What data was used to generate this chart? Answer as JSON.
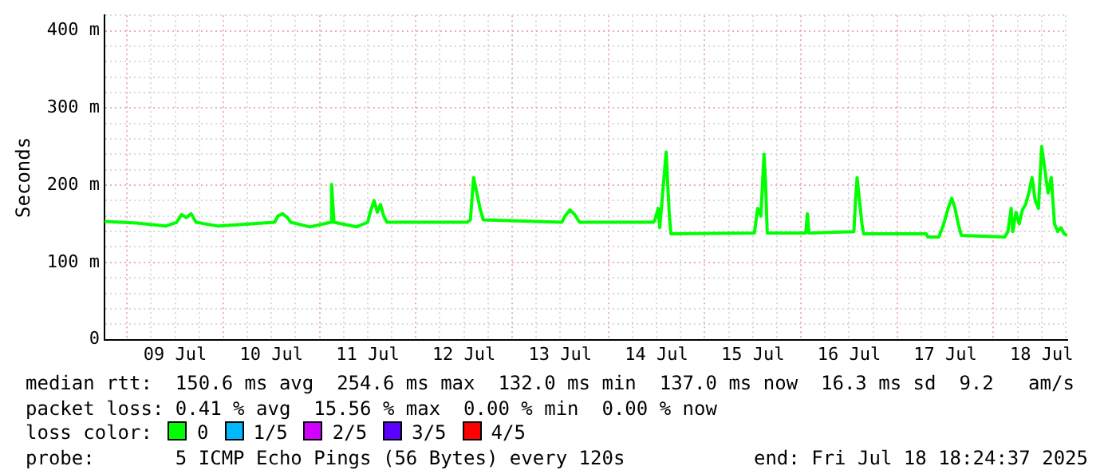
{
  "chart_data": {
    "type": "line",
    "ylabel": "Seconds",
    "x": [
      "2025-07-08T18:24",
      "2025-07-09T02:24",
      "2025-07-09T09:36",
      "2025-07-09T12:24",
      "2025-07-09T13:36",
      "2025-07-09T14:48",
      "2025-07-09T16:00",
      "2025-07-09T17:12",
      "2025-07-09T22:48",
      "2025-07-10T12:48",
      "2025-07-10T13:36",
      "2025-07-10T14:48",
      "2025-07-10T16:00",
      "2025-07-10T16:48",
      "2025-07-10T21:36",
      "2025-07-11T02:48",
      "2025-07-11T03:00",
      "2025-07-11T03:36",
      "2025-07-11T09:12",
      "2025-07-11T12:00",
      "2025-07-11T12:48",
      "2025-07-11T13:36",
      "2025-07-11T14:24",
      "2025-07-11T15:12",
      "2025-07-11T16:00",
      "2025-07-11T16:48",
      "2025-07-12T12:48",
      "2025-07-12T13:36",
      "2025-07-12T14:24",
      "2025-07-12T15:12",
      "2025-07-12T16:00",
      "2025-07-12T16:48",
      "2025-07-13T12:24",
      "2025-07-13T13:12",
      "2025-07-13T14:24",
      "2025-07-13T15:36",
      "2025-07-13T16:48",
      "2025-07-14T11:12",
      "2025-07-14T11:36",
      "2025-07-14T12:24",
      "2025-07-14T12:48",
      "2025-07-14T14:24",
      "2025-07-14T15:12",
      "2025-07-14T15:36",
      "2025-07-15T12:24",
      "2025-07-15T13:12",
      "2025-07-15T14:00",
      "2025-07-15T14:48",
      "2025-07-15T15:12",
      "2025-07-15T15:36",
      "2025-07-16T01:12",
      "2025-07-16T01:36",
      "2025-07-16T02:00",
      "2025-07-16T13:12",
      "2025-07-16T13:36",
      "2025-07-16T14:00",
      "2025-07-16T14:24",
      "2025-07-16T15:12",
      "2025-07-16T15:36",
      "2025-07-17T07:12",
      "2025-07-17T07:36",
      "2025-07-17T10:24",
      "2025-07-17T11:36",
      "2025-07-17T12:48",
      "2025-07-17T13:36",
      "2025-07-17T14:24",
      "2025-07-17T15:12",
      "2025-07-17T16:00",
      "2025-07-18T02:48",
      "2025-07-18T03:36",
      "2025-07-18T04:24",
      "2025-07-18T04:48",
      "2025-07-18T05:36",
      "2025-07-18T06:24",
      "2025-07-18T07:12",
      "2025-07-18T08:00",
      "2025-07-18T08:48",
      "2025-07-18T09:36",
      "2025-07-18T10:24",
      "2025-07-18T11:12",
      "2025-07-18T12:00",
      "2025-07-18T12:48",
      "2025-07-18T13:36",
      "2025-07-18T14:24",
      "2025-07-18T15:12",
      "2025-07-18T16:00",
      "2025-07-18T16:48",
      "2025-07-18T17:36",
      "2025-07-18T18:24"
    ],
    "series": [
      {
        "color": "#00ff00",
        "values": [
          153,
          151,
          147,
          152,
          162,
          158,
          163,
          152,
          147,
          152,
          160,
          163,
          158,
          152,
          146,
          152,
          201,
          152,
          146,
          152,
          168,
          180,
          165,
          175,
          160,
          152,
          152,
          155,
          210,
          190,
          170,
          155,
          152,
          160,
          168,
          162,
          152,
          152,
          155,
          170,
          145,
          243,
          160,
          137,
          138,
          170,
          160,
          240,
          200,
          138,
          138,
          163,
          138,
          140,
          180,
          210,
          190,
          150,
          137,
          137,
          133,
          133,
          150,
          172,
          183,
          170,
          150,
          135,
          133,
          140,
          170,
          140,
          165,
          150,
          168,
          175,
          190,
          210,
          180,
          170,
          250,
          220,
          190,
          210,
          150,
          140,
          145,
          137,
          135
        ]
      }
    ],
    "xlim": [
      "2025-07-08T18:24",
      "2025-07-18T18:24"
    ],
    "xticks": [
      {
        "value": "2025-07-09T00:00",
        "label": null
      },
      {
        "value": "2025-07-09T06:00",
        "label": null
      },
      {
        "value": "2025-07-09T12:00",
        "label": "09 Jul"
      },
      {
        "value": "2025-07-09T18:00",
        "label": null
      },
      {
        "value": "2025-07-10T00:00",
        "label": null
      },
      {
        "value": "2025-07-10T06:00",
        "label": null
      },
      {
        "value": "2025-07-10T12:00",
        "label": "10 Jul"
      },
      {
        "value": "2025-07-10T18:00",
        "label": null
      },
      {
        "value": "2025-07-11T00:00",
        "label": null
      },
      {
        "value": "2025-07-11T06:00",
        "label": null
      },
      {
        "value": "2025-07-11T12:00",
        "label": "11 Jul"
      },
      {
        "value": "2025-07-11T18:00",
        "label": null
      },
      {
        "value": "2025-07-12T00:00",
        "label": null
      },
      {
        "value": "2025-07-12T06:00",
        "label": null
      },
      {
        "value": "2025-07-12T12:00",
        "label": "12 Jul"
      },
      {
        "value": "2025-07-12T18:00",
        "label": null
      },
      {
        "value": "2025-07-13T00:00",
        "label": null
      },
      {
        "value": "2025-07-13T06:00",
        "label": null
      },
      {
        "value": "2025-07-13T12:00",
        "label": "13 Jul"
      },
      {
        "value": "2025-07-13T18:00",
        "label": null
      },
      {
        "value": "2025-07-14T00:00",
        "label": null
      },
      {
        "value": "2025-07-14T06:00",
        "label": null
      },
      {
        "value": "2025-07-14T12:00",
        "label": "14 Jul"
      },
      {
        "value": "2025-07-14T18:00",
        "label": null
      },
      {
        "value": "2025-07-15T00:00",
        "label": null
      },
      {
        "value": "2025-07-15T06:00",
        "label": null
      },
      {
        "value": "2025-07-15T12:00",
        "label": "15 Jul"
      },
      {
        "value": "2025-07-15T18:00",
        "label": null
      },
      {
        "value": "2025-07-16T00:00",
        "label": null
      },
      {
        "value": "2025-07-16T06:00",
        "label": null
      },
      {
        "value": "2025-07-16T12:00",
        "label": "16 Jul"
      },
      {
        "value": "2025-07-16T18:00",
        "label": null
      },
      {
        "value": "2025-07-17T00:00",
        "label": null
      },
      {
        "value": "2025-07-17T06:00",
        "label": null
      },
      {
        "value": "2025-07-17T12:00",
        "label": "17 Jul"
      },
      {
        "value": "2025-07-17T18:00",
        "label": null
      },
      {
        "value": "2025-07-18T00:00",
        "label": null
      },
      {
        "value": "2025-07-18T06:00",
        "label": null
      },
      {
        "value": "2025-07-18T12:00",
        "label": "18 Jul"
      },
      {
        "value": "2025-07-18T18:00",
        "label": null
      }
    ],
    "ylim": [
      0,
      420
    ],
    "yticks": [
      0,
      {
        "value": 20,
        "label": null
      },
      {
        "value": 40,
        "label": null
      },
      {
        "value": 60,
        "label": null
      },
      {
        "value": 80,
        "label": null
      },
      {
        "value": 100,
        "label": "100 m"
      },
      {
        "value": 120,
        "label": null
      },
      {
        "value": 140,
        "label": null
      },
      {
        "value": 160,
        "label": null
      },
      {
        "value": 180,
        "label": null
      },
      {
        "value": 200,
        "label": "200 m"
      },
      {
        "value": 220,
        "label": null
      },
      {
        "value": 240,
        "label": null
      },
      {
        "value": 260,
        "label": null
      },
      {
        "value": 280,
        "label": null
      },
      {
        "value": 300,
        "label": "300 m"
      },
      {
        "value": 320,
        "label": null
      },
      {
        "value": 340,
        "label": null
      },
      {
        "value": 360,
        "label": null
      },
      {
        "value": 380,
        "label": null
      },
      {
        "value": 400,
        "label": "400 m"
      },
      {
        "value": 420,
        "label": null
      }
    ],
    "grid": true,
    "marker": "none",
    "line_style": "solid",
    "annotations": [
      "median rtt:  150.6 ms avg  254.6 ms max  132.0 ms min  137.0 ms now  16.3 ms sd  9.2   am/s",
      "packet loss: 0.41 % avg  15.56 % max  0.00 % min  0.00 % now",
      "loss color:",
      "0",
      "1/5",
      "2/5",
      "3/5",
      "4/5",
      "probe:       5 ICMP Echo Pings (56 Bytes) every 120s",
      "end: Fri Jul 18 18:24:37 2025"
    ]
  }
}
